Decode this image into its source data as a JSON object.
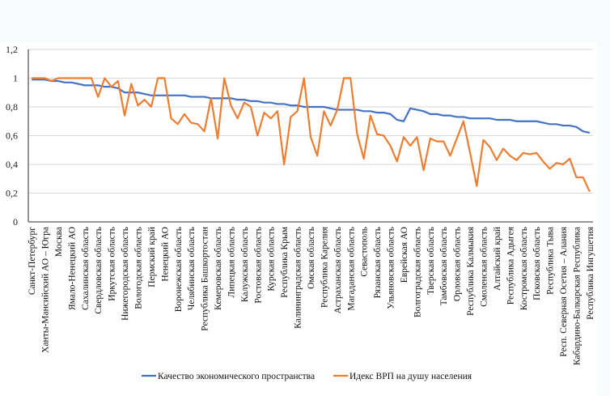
{
  "chart_data": {
    "type": "line",
    "title": "",
    "xlabel": "",
    "ylabel": "",
    "ylim": [
      0,
      1.2
    ],
    "yticks": [
      "0",
      "0,2",
      "0,4",
      "0,6",
      "0,8",
      "1",
      "1,2"
    ],
    "ytick_values": [
      0,
      0.2,
      0.4,
      0.6,
      0.8,
      1.0,
      1.2
    ],
    "grid": true,
    "legend_position": "bottom",
    "categories": [
      "Санкт-Петербург",
      "",
      "Ханты-Мансийский АО – Югра",
      "",
      "Москва",
      "",
      "Ямало-Ненецкий АО",
      "",
      "Сахалинская область",
      "",
      "Свердловская область",
      "",
      "Иркутская область",
      "",
      "Нижегородская область",
      "",
      "Вологодская область",
      "",
      "Пермский край",
      "",
      "Ненецкий АО",
      "",
      "Воронежская область",
      "",
      "Челябинская область",
      "",
      "Республика Башкортостан",
      "",
      "Кемеровская область",
      "",
      "Липецкая область",
      "",
      "Калужская область",
      "",
      "Ростовская область",
      "",
      "Курская область",
      "",
      "Республика Крым",
      "",
      "Калининградская область",
      "",
      "Омская область",
      "",
      "Республика Карелия",
      "",
      "Астраханская область",
      "",
      "Магаданская область",
      "",
      "Севастополь",
      "",
      "Рязанская область",
      "",
      "Ульяновская область",
      "",
      "Еврейская АО",
      "",
      "Волгоградская область",
      "",
      "Тверская область",
      "",
      "Тамбовская область",
      "",
      "Орловская область",
      "",
      "Республика Калмыкия",
      "",
      "Смоленская область",
      "",
      "Алтайский край",
      "",
      "Республика Адыгея",
      "",
      "Костромская область",
      "",
      "Псковская область",
      "",
      "Республика Тыва",
      "",
      "Респ. Северная Осетия – Алания",
      "",
      "Кабардино-Балкарская Республика",
      "",
      "Республика Ингушетия"
    ],
    "series": [
      {
        "name": "Качество экономического пространства",
        "color": "#4472c4",
        "values": [
          0.99,
          0.99,
          0.99,
          0.98,
          0.98,
          0.97,
          0.97,
          0.96,
          0.95,
          0.95,
          0.95,
          0.94,
          0.94,
          0.93,
          0.9,
          0.9,
          0.9,
          0.89,
          0.88,
          0.88,
          0.88,
          0.88,
          0.88,
          0.88,
          0.87,
          0.87,
          0.87,
          0.86,
          0.86,
          0.86,
          0.86,
          0.85,
          0.85,
          0.84,
          0.84,
          0.83,
          0.83,
          0.82,
          0.82,
          0.81,
          0.81,
          0.8,
          0.8,
          0.8,
          0.8,
          0.79,
          0.78,
          0.78,
          0.78,
          0.78,
          0.77,
          0.77,
          0.76,
          0.76,
          0.75,
          0.71,
          0.7,
          0.79,
          0.78,
          0.77,
          0.75,
          0.75,
          0.74,
          0.74,
          0.73,
          0.73,
          0.72,
          0.72,
          0.72,
          0.72,
          0.71,
          0.71,
          0.71,
          0.7,
          0.7,
          0.7,
          0.7,
          0.69,
          0.68,
          0.68,
          0.67,
          0.67,
          0.66,
          0.63,
          0.62
        ]
      },
      {
        "name": "Идекс ВРП на душу населения",
        "color": "#ed7d31",
        "values": [
          1.0,
          1.0,
          1.0,
          0.98,
          1.0,
          1.0,
          1.0,
          1.0,
          1.0,
          1.0,
          0.87,
          1.0,
          0.94,
          0.98,
          0.74,
          0.96,
          0.81,
          0.85,
          0.8,
          1.0,
          1.0,
          0.72,
          0.68,
          0.75,
          0.69,
          0.68,
          0.63,
          0.86,
          0.58,
          1.0,
          0.81,
          0.72,
          0.83,
          0.8,
          0.6,
          0.76,
          0.72,
          0.77,
          0.4,
          0.73,
          0.77,
          1.0,
          0.59,
          0.46,
          0.77,
          0.67,
          0.78,
          1.0,
          1.0,
          0.61,
          0.44,
          0.74,
          0.61,
          0.6,
          0.53,
          0.42,
          0.59,
          0.53,
          0.59,
          0.36,
          0.58,
          0.56,
          0.56,
          0.46,
          0.58,
          0.7,
          0.48,
          0.25,
          0.57,
          0.52,
          0.43,
          0.51,
          0.46,
          0.43,
          0.48,
          0.47,
          0.48,
          0.42,
          0.37,
          0.41,
          0.4,
          0.44,
          0.31,
          0.31,
          0.21
        ]
      }
    ]
  }
}
